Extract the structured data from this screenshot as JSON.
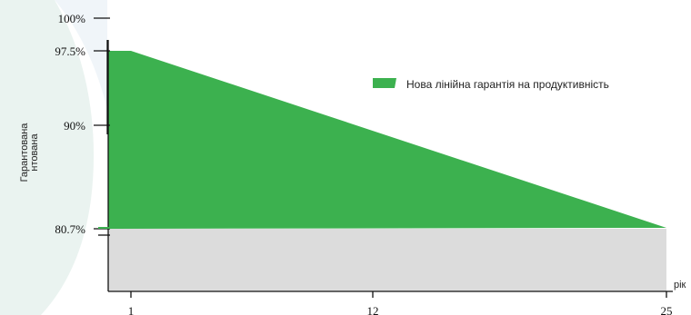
{
  "chart_data": {
    "type": "area",
    "title": "",
    "xlabel": "рік",
    "ylabel": "Гарантована\nнтована",
    "x_ticks": [
      1,
      12,
      25
    ],
    "y_ticks": [
      {
        "value": 100,
        "label": "100%"
      },
      {
        "value": 97.5,
        "label": "97.5%"
      },
      {
        "value": 90,
        "label": "90%"
      },
      {
        "value": 80.7,
        "label": "80.7%"
      }
    ],
    "xlim": [
      0,
      26
    ],
    "ylim": [
      71.5,
      100.5
    ],
    "baseline_value": 80.7,
    "series": [
      {
        "name": "Нова лінійна гарантія на продуктивність",
        "x": [
          1,
          25
        ],
        "values": [
          97.5,
          80.7
        ],
        "color": "#3cb14f"
      }
    ],
    "base_region_color": "#dcdcdc",
    "legend_position": "top-right",
    "grid": false
  }
}
